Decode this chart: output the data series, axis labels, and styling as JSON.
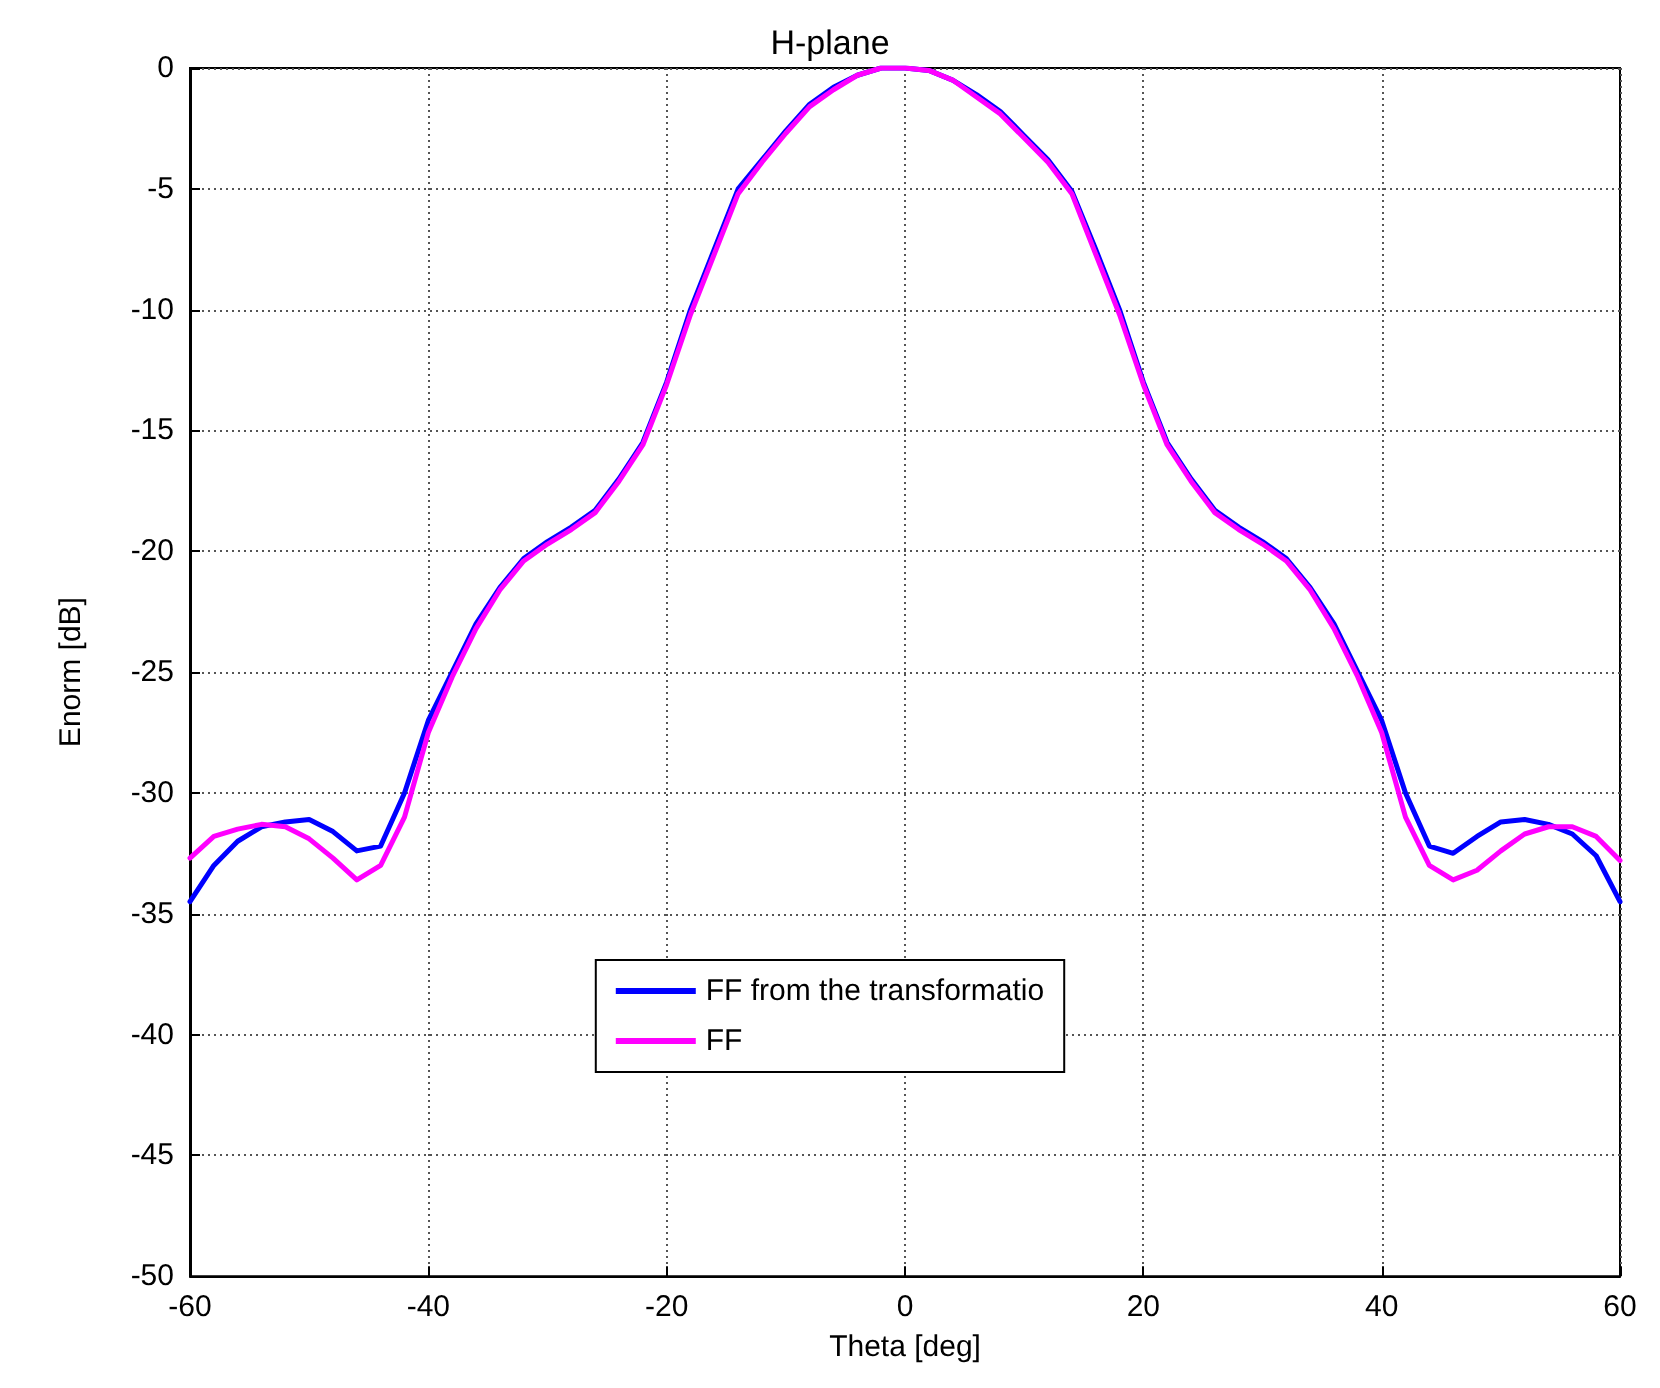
{
  "chart_data": {
    "type": "line",
    "title": "H-plane",
    "xlabel": "Theta [deg]",
    "ylabel": "Enorm [dB]",
    "x": [
      -60,
      -58,
      -56,
      -54,
      -52,
      -50,
      -48,
      -46,
      -44,
      -42,
      -40,
      -38,
      -36,
      -34,
      -32,
      -30,
      -28,
      -26,
      -24,
      -22,
      -20,
      -18,
      -16,
      -14,
      -12,
      -10,
      -8,
      -6,
      -4,
      -2,
      0,
      2,
      4,
      6,
      8,
      10,
      12,
      14,
      16,
      18,
      20,
      22,
      24,
      26,
      28,
      30,
      32,
      34,
      36,
      38,
      40,
      42,
      44,
      46,
      48,
      50,
      52,
      54,
      56,
      58,
      60
    ],
    "series": [
      {
        "name": "FF from the transformatio",
        "color": "#0000ff",
        "values": [
          -34.5,
          -33,
          -32,
          -31.4,
          -31.2,
          -31.1,
          -31.6,
          -32.4,
          -32.2,
          -30,
          -27,
          -25,
          -23,
          -21.5,
          -20.3,
          -19.6,
          -19,
          -18.3,
          -17,
          -15.5,
          -13,
          -10,
          -7.5,
          -5,
          -3.8,
          -2.6,
          -1.5,
          -0.8,
          -0.3,
          0,
          0,
          -0.1,
          -0.5,
          -1.1,
          -1.8,
          -2.8,
          -3.8,
          -5.1,
          -7.5,
          -10,
          -13,
          -15.5,
          -17,
          -18.3,
          -19,
          -19.6,
          -20.3,
          -21.5,
          -23,
          -25,
          -27,
          -30,
          -32.2,
          -32.5,
          -31.8,
          -31.2,
          -31.1,
          -31.3,
          -31.7,
          -32.6,
          -34.5
        ]
      },
      {
        "name": "FF",
        "color": "#ff00ff",
        "values": [
          -32.7,
          -31.8,
          -31.5,
          -31.3,
          -31.4,
          -31.9,
          -32.7,
          -33.6,
          -33,
          -31,
          -27.5,
          -25.2,
          -23.2,
          -21.6,
          -20.4,
          -19.7,
          -19.1,
          -18.4,
          -17.1,
          -15.6,
          -13.1,
          -10.2,
          -7.7,
          -5.2,
          -3.9,
          -2.7,
          -1.6,
          -0.9,
          -0.3,
          0,
          0,
          -0.1,
          -0.5,
          -1.2,
          -1.9,
          -2.9,
          -3.9,
          -5.2,
          -7.7,
          -10.2,
          -13.1,
          -15.6,
          -17.1,
          -18.4,
          -19.1,
          -19.7,
          -20.4,
          -21.6,
          -23.2,
          -25.2,
          -27.5,
          -31,
          -33,
          -33.6,
          -33.2,
          -32.4,
          -31.7,
          -31.4,
          -31.4,
          -31.8,
          -32.8
        ]
      }
    ],
    "xlim": [
      -60,
      60
    ],
    "ylim": [
      -50,
      0
    ],
    "xticks": [
      -60,
      -40,
      -20,
      0,
      20,
      40,
      60
    ],
    "yticks": [
      -50,
      -45,
      -40,
      -35,
      -30,
      -25,
      -20,
      -15,
      -10,
      -5,
      0
    ],
    "grid": true,
    "legend": "bottom",
    "marker": "none",
    "line_style": "solid"
  }
}
